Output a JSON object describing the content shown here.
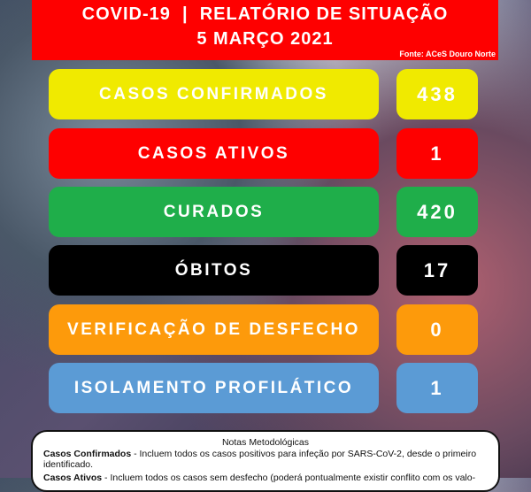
{
  "header": {
    "title": "COVID-19  |  RELATÓRIO DE SITUAÇÃO",
    "date": "5 MARÇO 2021",
    "source": "Fonte: ACeS Douro Norte"
  },
  "stats": [
    {
      "label": "CASOS CONFIRMADOS",
      "value": "438",
      "color": "#f0ea00",
      "text": "#ffffff"
    },
    {
      "label": "CASOS ATIVOS",
      "value": "1",
      "color": "#fe0000",
      "text": "#ffffff"
    },
    {
      "label": "CURADOS",
      "value": "420",
      "color": "#1fae4a",
      "text": "#ffffff"
    },
    {
      "label": "ÓBITOS",
      "value": "17",
      "color": "#000000",
      "text": "#ffffff"
    },
    {
      "label": "VERIFICAÇÃO DE DESFECHO",
      "value": "0",
      "color": "#fd9a0b",
      "text": "#ffffff"
    },
    {
      "label": "ISOLAMENTO PROFILÁTICO",
      "value": "1",
      "color": "#5b9bd5",
      "text": "#ffffff"
    }
  ],
  "notes": {
    "title": "Notas Metodológicas",
    "items": [
      {
        "term": "Casos Confirmados",
        "text": " - Incluem todos os casos positivos para infeção por SARS-CoV-2, desde o primeiro identificado."
      },
      {
        "term": "Casos Ativos",
        "text": " - Incluem todos os casos sem desfecho (poderá pontualmente existir conflito com os valo-"
      }
    ]
  }
}
